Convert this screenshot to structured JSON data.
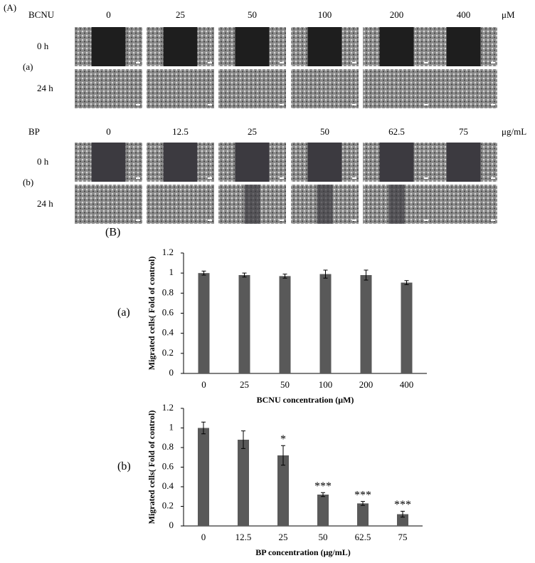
{
  "figure_label": "(A)",
  "panel_a": {
    "rows": [
      {
        "label": "(a)",
        "drug": "BCNU",
        "doses": [
          "0",
          "25",
          "50",
          "100",
          "200",
          "400"
        ],
        "unit": "μM",
        "times": [
          "0 h",
          "24 h"
        ]
      },
      {
        "label": "(b)",
        "drug": "BP",
        "doses": [
          "0",
          "12.5",
          "25",
          "50",
          "62.5",
          "75"
        ],
        "unit": "μg/mL",
        "times": [
          "0 h",
          "24 h"
        ]
      }
    ]
  },
  "panel_b_label": "(B)",
  "chart_data": [
    {
      "type": "bar",
      "panel_label": "(a)",
      "categories": [
        "0",
        "25",
        "50",
        "100",
        "200",
        "400"
      ],
      "values": [
        1.0,
        0.98,
        0.97,
        0.99,
        0.98,
        0.905
      ],
      "errors": [
        0.02,
        0.02,
        0.02,
        0.04,
        0.05,
        0.02
      ],
      "color": "#595959",
      "ylim": [
        0,
        1.2
      ],
      "yticks": [
        0,
        0.2,
        0.4,
        0.6,
        0.8,
        1,
        1.2
      ],
      "ylabel": "Migrated cells( Fold of control)",
      "xlabel": "BCNU concentration (μM)"
    },
    {
      "type": "bar",
      "panel_label": "(b)",
      "categories": [
        "0",
        "12.5",
        "25",
        "50",
        "62.5",
        "75"
      ],
      "values": [
        1.0,
        0.88,
        0.72,
        0.32,
        0.23,
        0.12
      ],
      "errors": [
        0.06,
        0.09,
        0.1,
        0.02,
        0.02,
        0.03
      ],
      "significance": [
        null,
        null,
        "*",
        "***",
        "***",
        "***"
      ],
      "color": "#595959",
      "ylim": [
        0,
        1.2
      ],
      "yticks": [
        0,
        0.2,
        0.4,
        0.6,
        0.8,
        1,
        1.2
      ],
      "ylabel": "Migrated cells( Fold of control)",
      "xlabel": "BP concentration (μg/mL)"
    }
  ]
}
